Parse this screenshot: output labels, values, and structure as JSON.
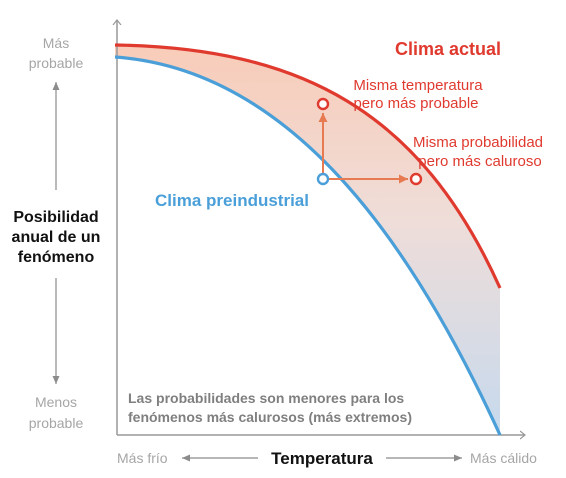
{
  "y_axis": {
    "top_line1": "Más",
    "top_line2": "probable",
    "title_line1": "Posibilidad",
    "title_line2": "anual de un",
    "title_line3": "fenómeno",
    "bottom_line1": "Menos",
    "bottom_line2": "probable"
  },
  "x_axis": {
    "left": "Más frío",
    "title": "Temperatura",
    "right": "Más cálido"
  },
  "curves": {
    "current": "Clima actual",
    "preindustrial": "Clima preindustrial"
  },
  "annotations": {
    "same_temp_line1": "Misma temperatura",
    "same_temp_line2": "pero más probable",
    "same_prob_line1": "Misma probabilidad",
    "same_prob_line2": "pero más caluroso",
    "note_line1": "Las probabilidades son menores para los",
    "note_line2": "fenómenos más calurosos (más extremos)"
  },
  "colors": {
    "current": "#e03a2f",
    "preindustrial": "#4a9fd9",
    "arrow": "#e87a52",
    "axis": "#999999",
    "muted_text": "#a6a6a6",
    "note_text": "#7f7f7f"
  }
}
